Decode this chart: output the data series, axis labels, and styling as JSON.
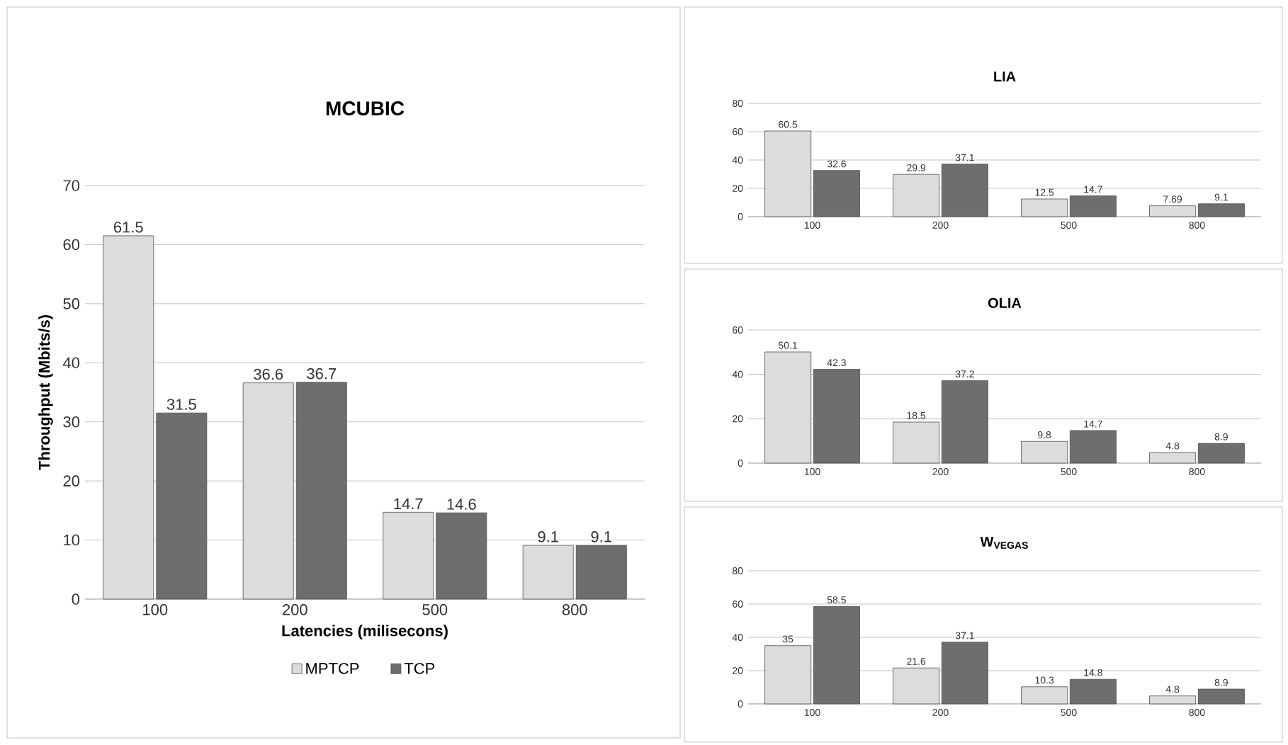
{
  "chart_data": [
    {
      "type": "bar",
      "title": "MCUBIC",
      "xlabel": "Latencies (milisecons)",
      "ylabel": "Throughput (Mbits/s)",
      "categories": [
        "100",
        "200",
        "500",
        "800"
      ],
      "series": [
        {
          "name": "MPTCP",
          "color": "#dcdcdc",
          "values": [
            61.5,
            36.6,
            14.7,
            9.1
          ]
        },
        {
          "name": "TCP",
          "color": "#6e6e6e",
          "values": [
            31.5,
            36.7,
            14.6,
            9.1
          ]
        }
      ],
      "ylim": [
        0,
        70
      ],
      "yticks": [
        0,
        10,
        20,
        30,
        40,
        50,
        60,
        70
      ],
      "grid": "y",
      "legend": "bottom",
      "data_labels": true
    },
    {
      "type": "bar",
      "title": "LIA",
      "categories": [
        "100",
        "200",
        "500",
        "800"
      ],
      "series": [
        {
          "color": "#dcdcdc",
          "values": [
            60.5,
            29.9,
            12.5,
            7.69
          ]
        },
        {
          "color": "#6e6e6e",
          "values": [
            32.6,
            37.1,
            14.7,
            9.1
          ]
        }
      ],
      "ylim": [
        0,
        80
      ],
      "yticks": [
        0,
        20,
        40,
        60,
        80
      ],
      "grid": "y",
      "data_labels": true
    },
    {
      "type": "bar",
      "title": "OLIA",
      "categories": [
        "100",
        "200",
        "500",
        "800"
      ],
      "series": [
        {
          "color": "#dcdcdc",
          "values": [
            50.1,
            18.5,
            9.8,
            4.8
          ]
        },
        {
          "color": "#6e6e6e",
          "values": [
            42.3,
            37.2,
            14.7,
            8.9
          ]
        }
      ],
      "ylim": [
        0,
        60
      ],
      "yticks": [
        0,
        20,
        40,
        60
      ],
      "grid": "y",
      "data_labels": true
    },
    {
      "type": "bar",
      "title": "W$_{VEGAS}$",
      "categories": [
        "100",
        "200",
        "500",
        "800"
      ],
      "series": [
        {
          "color": "#dcdcdc",
          "values": [
            35,
            21.6,
            10.3,
            4.8
          ]
        },
        {
          "color": "#6e6e6e",
          "values": [
            58.5,
            37.1,
            14.8,
            8.9
          ]
        }
      ],
      "ylim": [
        0,
        80
      ],
      "yticks": [
        0,
        20,
        40,
        60,
        80
      ],
      "grid": "y",
      "data_labels": true
    }
  ]
}
